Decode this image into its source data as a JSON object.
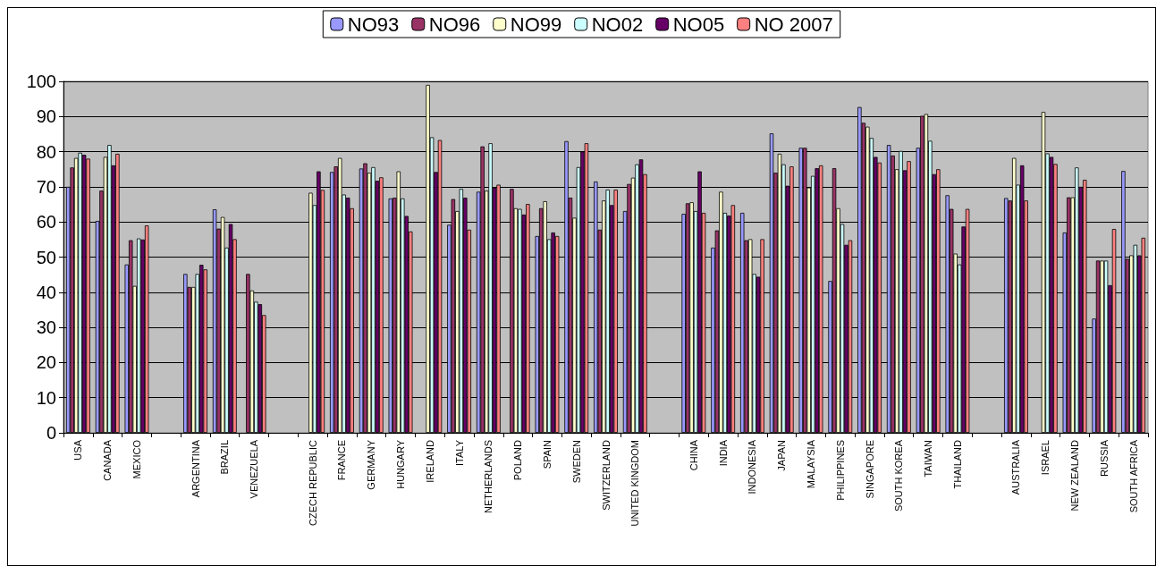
{
  "chart_data": {
    "type": "bar",
    "categories": [
      "USA",
      "CANADA",
      "MEXICO",
      null,
      "ARGENTINA",
      "BRAZIL",
      "VENEZUELA",
      null,
      "CZECH REPUBLIC",
      "FRANCE",
      "GERMANY",
      "HUNGARY",
      "IRELAND",
      "ITALY",
      "NETHERLANDS",
      "POLAND",
      "SPAIN",
      "SWEDEN",
      "SWITZERLAND",
      "UNITED KINGDOM",
      null,
      "CHINA",
      "INDIA",
      "INDONESIA",
      "JAPAN",
      "MALAYSIA",
      "PHILIPPINES",
      "SINGAPORE",
      "SOUTH KOREA",
      "TAIWAN",
      "THAILAND",
      null,
      "AUSTRALIA",
      "ISRAEL",
      "NEW ZEALAND",
      "RUSSIA",
      "SOUTH AFRICA"
    ],
    "series": [
      {
        "name": "NO93",
        "color": "#9999ff",
        "values": [
          70,
          60.3,
          47.9,
          null,
          45.2,
          63.6,
          null,
          null,
          null,
          74.2,
          75.2,
          66.7,
          null,
          59.2,
          68.6,
          null,
          56,
          83,
          71.5,
          63.1,
          null,
          62.3,
          52.7,
          62.6,
          85.2,
          81.1,
          43.2,
          92.7,
          81.9,
          81.1,
          67.6,
          null,
          66.8,
          null,
          57,
          32.5,
          74.5
        ]
      },
      {
        "name": "NO96",
        "color": "#993366",
        "values": [
          75.5,
          68.9,
          54.8,
          null,
          41.5,
          58.1,
          45.2,
          null,
          null,
          75.8,
          76.7,
          66.9,
          null,
          66.5,
          81.5,
          69.4,
          63.9,
          66.9,
          57.8,
          70.8,
          null,
          65.3,
          57.6,
          54.8,
          74,
          81.1,
          75.3,
          88.2,
          78.9,
          90.2,
          63.7,
          null,
          66.1,
          null,
          67,
          49,
          49.5
        ]
      },
      {
        "name": "NO99",
        "color": "#ffffcc",
        "values": [
          78.2,
          78.5,
          41.8,
          null,
          41.5,
          61.4,
          40.5,
          null,
          68.3,
          78.2,
          74,
          74.4,
          99,
          63.1,
          68.9,
          63.9,
          65.9,
          61.2,
          66.1,
          72.6,
          null,
          65.6,
          68.6,
          55.1,
          79.4,
          69.8,
          63.9,
          87.1,
          75,
          90.7,
          51,
          null,
          78.2,
          91.3,
          67,
          49,
          50.5
        ]
      },
      {
        "name": "NO02",
        "color": "#ccffff",
        "values": [
          79.7,
          81.9,
          55.3,
          null,
          45.2,
          52.7,
          37.3,
          null,
          64.8,
          67.8,
          75.6,
          66.7,
          84.1,
          69.4,
          82.4,
          63.7,
          55.1,
          75.6,
          69.2,
          76.4,
          null,
          63.1,
          62.6,
          45.2,
          76.4,
          73.1,
          59.4,
          83.9,
          80.2,
          83.1,
          47.9,
          null,
          70.6,
          79.5,
          75.5,
          49,
          53.5
        ]
      },
      {
        "name": "NO05",
        "color": "#660066",
        "values": [
          79.1,
          76.1,
          55,
          null,
          47.8,
          59.4,
          36.6,
          null,
          74.4,
          66.9,
          71.7,
          61.7,
          74.2,
          66.9,
          69.8,
          62.1,
          57,
          80,
          64.8,
          77.8,
          null,
          74.4,
          61.8,
          44.4,
          70.3,
          75.3,
          53.5,
          78.5,
          74.7,
          73.6,
          58.7,
          null,
          76.1,
          78.5,
          70,
          42,
          50.5
        ]
      },
      {
        "name": "NO 2007",
        "color": "#ff8080",
        "values": [
          78,
          79.4,
          59,
          null,
          46.5,
          55.1,
          33.5,
          null,
          69.1,
          63.9,
          72.7,
          57.3,
          83.3,
          57.8,
          70.6,
          65.1,
          56,
          82.4,
          69.2,
          73.6,
          null,
          62.6,
          64.8,
          55.1,
          75.8,
          76.1,
          54.8,
          76.9,
          77.3,
          75,
          63.7,
          null,
          66.1,
          76.5,
          72,
          58,
          55.5
        ]
      }
    ],
    "ylim": [
      0,
      100
    ],
    "yticks": [
      0,
      10,
      20,
      30,
      40,
      50,
      60,
      70,
      80,
      90,
      100
    ],
    "grid": "y",
    "legend": "top"
  }
}
